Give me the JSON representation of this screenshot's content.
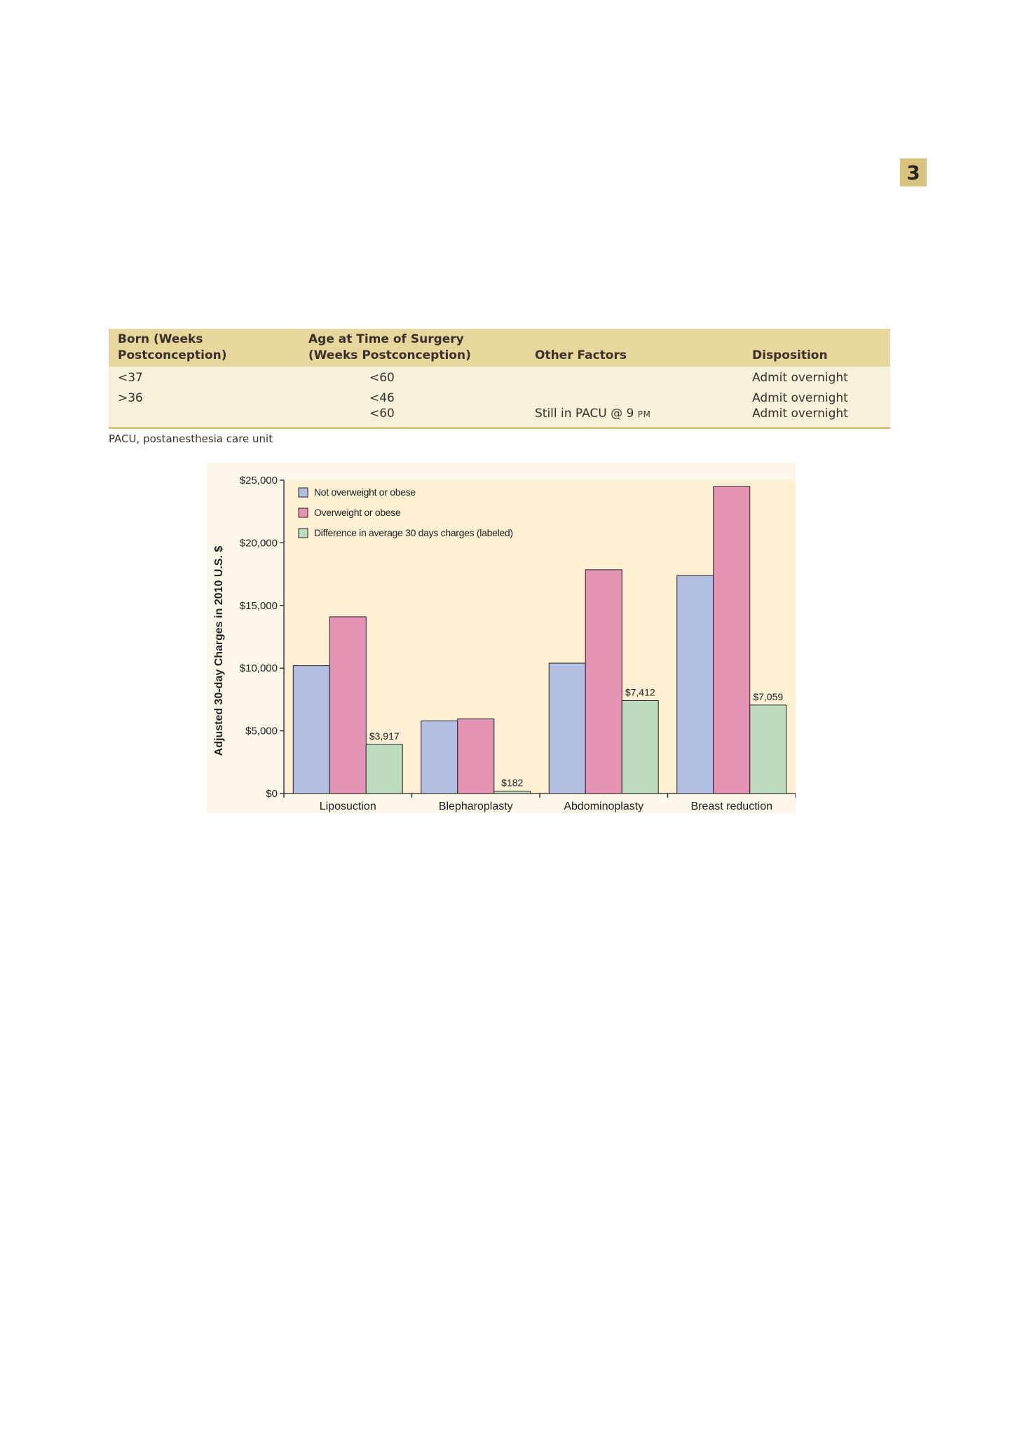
{
  "page": {
    "chapter_number": "3"
  },
  "table": {
    "headers": [
      [
        "Born (Weeks",
        "Postconception)"
      ],
      [
        "Age at Time of Surgery",
        "(Weeks Postconception)"
      ],
      [
        "Other Factors"
      ],
      [
        "Disposition"
      ]
    ],
    "rows": [
      {
        "born": "<37",
        "age": "<60",
        "other": "",
        "disposition": "Admit overnight"
      },
      {
        "born": ">36",
        "age": "<46",
        "other": "",
        "disposition": "Admit overnight"
      },
      {
        "born": "",
        "age": "<60",
        "other": "Still in PACU @ 9",
        "other_suffix": "PM",
        "disposition": "Admit overnight"
      }
    ],
    "footnote": "PACU, postanesthesia care unit"
  },
  "chart_data": {
    "type": "bar",
    "ylabel": "Adjusted 30-day Charges in 2010 U.S. $",
    "ylim": [
      0,
      25000
    ],
    "yticks": [
      0,
      5000,
      10000,
      15000,
      20000,
      25000
    ],
    "ytick_labels": [
      "$0",
      "$5,000",
      "$10,000",
      "$15,000",
      "$20,000",
      "$25,000"
    ],
    "categories": [
      "Liposuction",
      "Blepharoplasty",
      "Abdominoplasty",
      "Breast reduction"
    ],
    "series": [
      {
        "name": "Not overweight or obese",
        "color": "#b3bfe2",
        "values": [
          10200,
          5800,
          10400,
          17400
        ]
      },
      {
        "name": "Overweight or obese",
        "color": "#e694b5",
        "values": [
          14100,
          5950,
          17850,
          24500
        ]
      },
      {
        "name": "Difference in average 30 days charges (labeled)",
        "color": "#bcdcbd",
        "values": [
          3917,
          182,
          7412,
          7059
        ],
        "labels": [
          "$3,917",
          "$182",
          "$7,412",
          "$7,059"
        ]
      }
    ],
    "legend_position": "top-left",
    "plot_background": "#fdf0d4",
    "grid": false
  }
}
